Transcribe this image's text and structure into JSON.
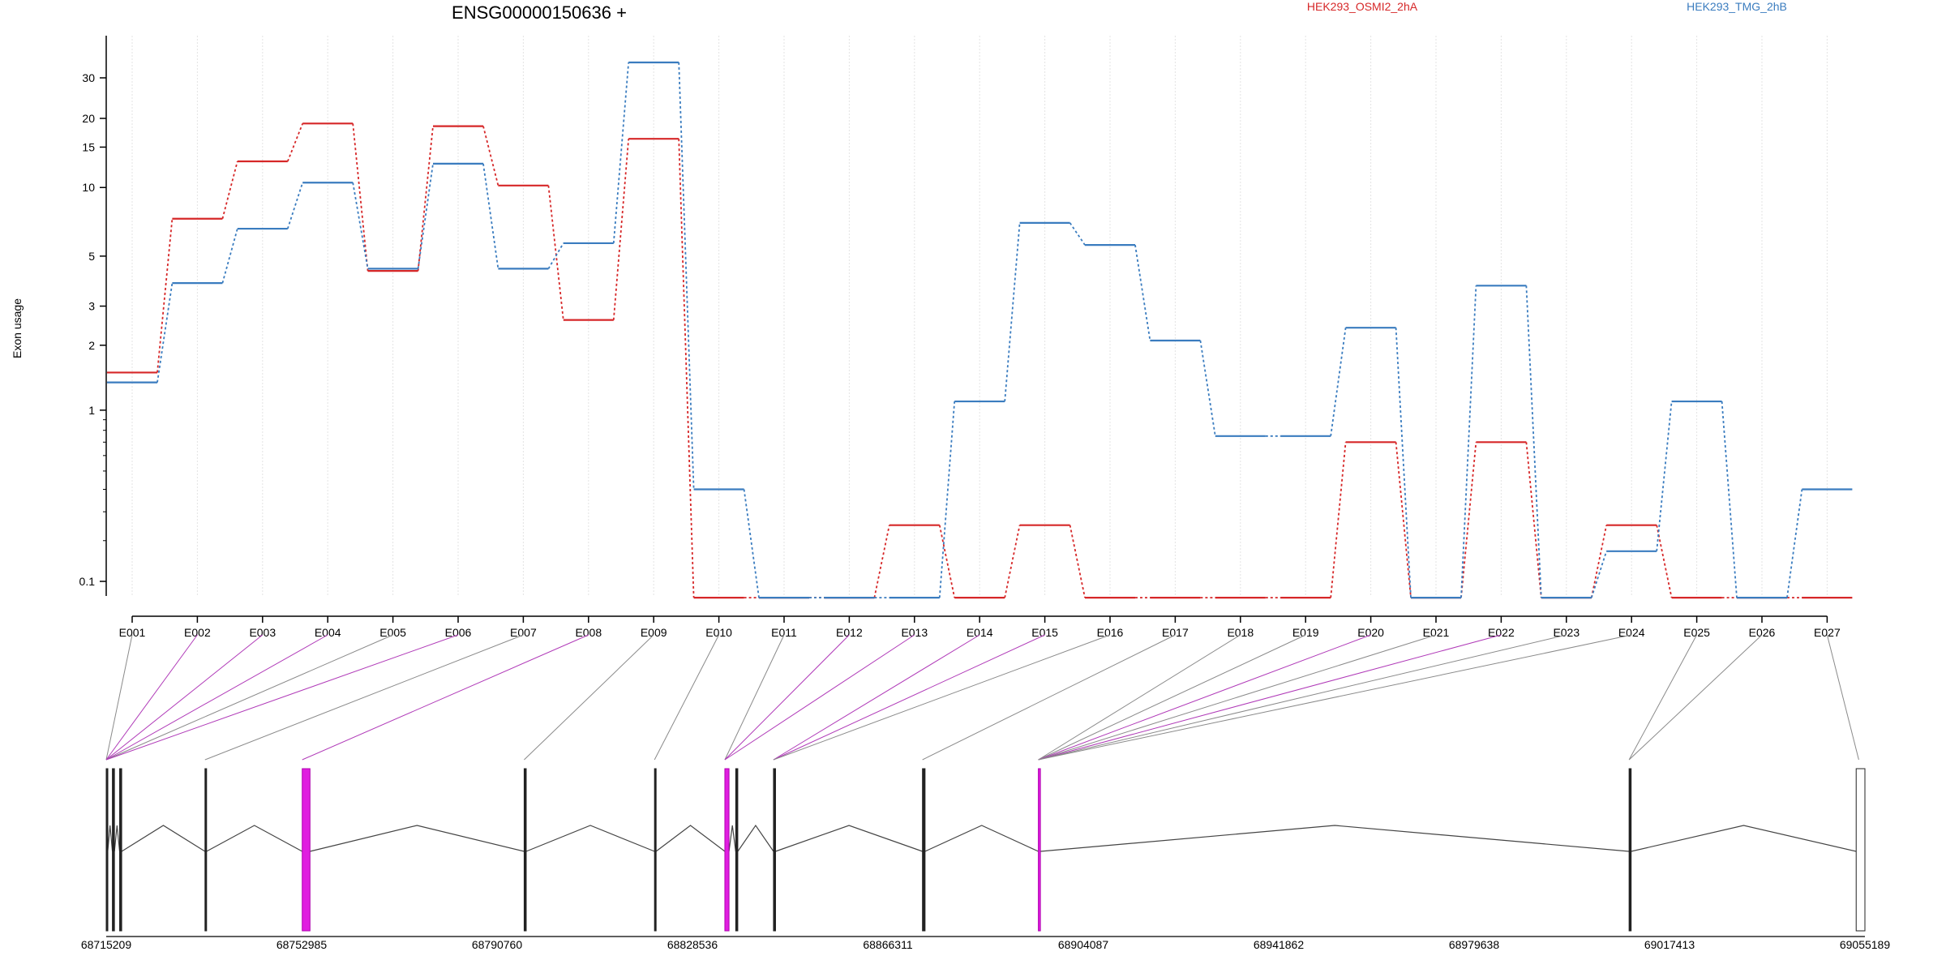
{
  "chart_data": {
    "type": "line",
    "title": "ENSG00000150636 +",
    "ylabel": "Exon usage",
    "yscale": "log(x+0.1)",
    "ylim": [
      0.07,
      40
    ],
    "yticks": [
      0.1,
      1,
      2,
      3,
      5,
      10,
      15,
      20,
      30
    ],
    "grid": "vertical dotted",
    "legend_position": "top-right",
    "categories": [
      "E001",
      "E002",
      "E003",
      "E004",
      "E005",
      "E006",
      "E007",
      "E008",
      "E009",
      "E010",
      "E011",
      "E012",
      "E013",
      "E014",
      "E015",
      "E016",
      "E017",
      "E018",
      "E019",
      "E020",
      "E021",
      "E022",
      "E023",
      "E024",
      "E025",
      "E026",
      "E027"
    ],
    "series": [
      {
        "name": "HEK293_OSMI2_2hA",
        "color": "#d62728",
        "values": [
          1.5,
          7.3,
          13.0,
          19.0,
          4.3,
          18.5,
          10.2,
          2.6,
          16.3,
          0.07,
          0.07,
          0.07,
          0.25,
          0.07,
          0.25,
          0.07,
          0.07,
          0.07,
          0.07,
          0.7,
          0.07,
          0.7,
          0.07,
          0.25,
          0.07,
          0.07,
          0.07
        ]
      },
      {
        "name": "HEK293_TMG_2hB",
        "color": "#3a7cbf",
        "values": [
          1.35,
          3.8,
          6.6,
          10.5,
          4.4,
          12.7,
          4.4,
          5.7,
          35.0,
          0.4,
          0.07,
          0.07,
          0.07,
          1.1,
          7.0,
          5.6,
          2.1,
          0.75,
          0.75,
          2.4,
          0.07,
          3.7,
          0.07,
          0.17,
          1.1,
          0.07,
          0.4
        ]
      }
    ],
    "genomic_axis": {
      "labels": [
        "68715209",
        "68752985",
        "68790760",
        "68828536",
        "68866311",
        "68904087",
        "68941862",
        "68979638",
        "69017413",
        "69055189"
      ],
      "range": [
        68715209,
        69055189
      ]
    },
    "exons": [
      {
        "start": 68715209,
        "end": 68715500,
        "highlight": false
      },
      {
        "start": 68716400,
        "end": 68716800,
        "highlight": false
      },
      {
        "start": 68717800,
        "end": 68718200,
        "highlight": false
      },
      {
        "start": 68734300,
        "end": 68734600,
        "highlight": false
      },
      {
        "start": 68753100,
        "end": 68754600,
        "highlight": true
      },
      {
        "start": 68796000,
        "end": 68796400,
        "highlight": false
      },
      {
        "start": 68821200,
        "end": 68821500,
        "highlight": false
      },
      {
        "start": 68834800,
        "end": 68835600,
        "highlight": true
      },
      {
        "start": 68836900,
        "end": 68837300,
        "highlight": false
      },
      {
        "start": 68844200,
        "end": 68844600,
        "highlight": false
      },
      {
        "start": 68873000,
        "end": 68873500,
        "highlight": false
      },
      {
        "start": 68895400,
        "end": 68895800,
        "highlight": true
      },
      {
        "start": 69009600,
        "end": 69010000,
        "highlight": false
      },
      {
        "start": 69053500,
        "end": 69055189,
        "highlight": false,
        "hollow": true
      }
    ],
    "connectors": [
      {
        "exon": "E001",
        "target": 68715209,
        "highlight": false
      },
      {
        "exon": "E002",
        "target": 68715209,
        "highlight": true
      },
      {
        "exon": "E003",
        "target": 68715209,
        "highlight": true
      },
      {
        "exon": "E004",
        "target": 68715209,
        "highlight": true
      },
      {
        "exon": "E005",
        "target": 68715209,
        "highlight": false
      },
      {
        "exon": "E006",
        "target": 68715209,
        "highlight": true
      },
      {
        "exon": "E007",
        "target": 68734300,
        "highlight": false
      },
      {
        "exon": "E008",
        "target": 68753100,
        "highlight": true
      },
      {
        "exon": "E009",
        "target": 68796000,
        "highlight": false
      },
      {
        "exon": "E010",
        "target": 68821200,
        "highlight": false
      },
      {
        "exon": "E011",
        "target": 68834800,
        "highlight": false
      },
      {
        "exon": "E012",
        "target": 68834800,
        "highlight": true
      },
      {
        "exon": "E013",
        "target": 68834800,
        "highlight": true
      },
      {
        "exon": "E014",
        "target": 68844200,
        "highlight": true
      },
      {
        "exon": "E015",
        "target": 68844200,
        "highlight": true
      },
      {
        "exon": "E016",
        "target": 68844200,
        "highlight": false
      },
      {
        "exon": "E017",
        "target": 68873000,
        "highlight": false
      },
      {
        "exon": "E018",
        "target": 68895400,
        "highlight": false
      },
      {
        "exon": "E019",
        "target": 68895400,
        "highlight": false
      },
      {
        "exon": "E020",
        "target": 68895400,
        "highlight": true
      },
      {
        "exon": "E021",
        "target": 68895400,
        "highlight": false
      },
      {
        "exon": "E022",
        "target": 68895400,
        "highlight": true
      },
      {
        "exon": "E023",
        "target": 68895400,
        "highlight": false
      },
      {
        "exon": "E024",
        "target": 68895400,
        "highlight": false
      },
      {
        "exon": "E025",
        "target": 69009600,
        "highlight": false
      },
      {
        "exon": "E026",
        "target": 69009600,
        "highlight": false
      },
      {
        "exon": "E027",
        "target": 69054000,
        "highlight": false
      }
    ]
  }
}
